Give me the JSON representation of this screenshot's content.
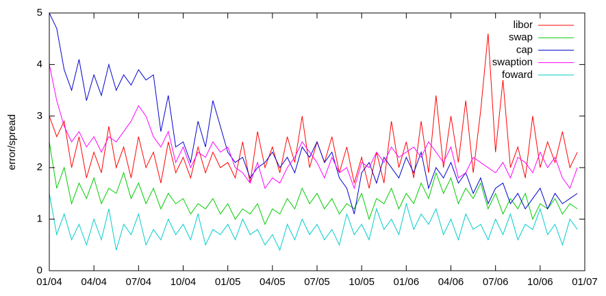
{
  "chart_data": {
    "type": "line",
    "y_label": "error/spread",
    "x": [
      0,
      0.5,
      1,
      1.5,
      2,
      2.5,
      3,
      3.5,
      4,
      4.5,
      5,
      5.5,
      6,
      6.5,
      7,
      7.5,
      8,
      8.5,
      9,
      9.5,
      10,
      10.5,
      11,
      11.5,
      12,
      12.5,
      13,
      13.5,
      14,
      14.5,
      15,
      15.5,
      16,
      16.5,
      17,
      17.5,
      18,
      18.5,
      19,
      19.5,
      20,
      20.5,
      21,
      21.5,
      22,
      22.5,
      23,
      23.5,
      24,
      24.5,
      25,
      25.5,
      26,
      26.5,
      27,
      27.5,
      28,
      28.5,
      29,
      29.5,
      30,
      30.5,
      31,
      31.5,
      32,
      32.5,
      33,
      33.5,
      34,
      34.5,
      35,
      35.5
    ],
    "xlim": [
      0,
      36
    ],
    "xticks": [
      {
        "value": 0,
        "label": "01/04"
      },
      {
        "value": 3,
        "label": "04/04"
      },
      {
        "value": 6,
        "label": "07/04"
      },
      {
        "value": 9,
        "label": "10/04"
      },
      {
        "value": 12,
        "label": "01/05"
      },
      {
        "value": 15,
        "label": "04/05"
      },
      {
        "value": 18,
        "label": "07/05"
      },
      {
        "value": 21,
        "label": "10/05"
      },
      {
        "value": 24,
        "label": "01/06"
      },
      {
        "value": 27,
        "label": "04/06"
      },
      {
        "value": 30,
        "label": "07/06"
      },
      {
        "value": 33,
        "label": "10/06"
      },
      {
        "value": 36,
        "label": "01/07"
      }
    ],
    "ylim": [
      0,
      5
    ],
    "yticks": [
      0,
      1,
      2,
      3,
      4,
      5
    ],
    "legend_position": "top-right",
    "series": [
      {
        "name": "libor",
        "color": "#ff0000",
        "values": [
          3.0,
          2.6,
          2.9,
          2.0,
          2.6,
          1.8,
          2.3,
          1.9,
          2.8,
          2.0,
          2.4,
          1.8,
          2.6,
          2.0,
          2.3,
          1.7,
          2.5,
          1.9,
          2.2,
          1.8,
          2.4,
          1.9,
          2.3,
          2.0,
          2.1,
          1.8,
          2.5,
          1.7,
          2.7,
          2.0,
          2.4,
          1.9,
          2.6,
          2.1,
          3.0,
          2.0,
          2.5,
          2.1,
          2.6,
          1.9,
          2.4,
          1.7,
          2.2,
          1.6,
          2.3,
          1.7,
          2.9,
          2.0,
          2.5,
          1.8,
          2.9,
          1.9,
          3.4,
          2.0,
          3.0,
          2.1,
          3.3,
          1.9,
          3.1,
          4.6,
          2.3,
          3.7,
          2.0,
          2.4,
          1.8,
          3.0,
          2.0,
          2.5,
          2.1,
          2.7,
          2.0,
          2.3
        ]
      },
      {
        "name": "swap",
        "color": "#00cc00",
        "values": [
          2.5,
          1.6,
          2.0,
          1.3,
          1.7,
          1.4,
          1.8,
          1.3,
          1.6,
          1.5,
          1.9,
          1.4,
          1.7,
          1.3,
          1.6,
          1.2,
          1.5,
          1.3,
          1.4,
          1.1,
          1.3,
          1.2,
          1.4,
          1.1,
          1.3,
          1.0,
          1.2,
          1.1,
          1.3,
          0.9,
          1.2,
          1.1,
          1.4,
          1.2,
          1.6,
          1.3,
          1.5,
          1.2,
          1.4,
          1.1,
          1.3,
          1.2,
          1.5,
          1.0,
          1.4,
          1.3,
          1.6,
          1.2,
          1.5,
          1.3,
          1.7,
          1.4,
          1.9,
          1.5,
          1.8,
          1.3,
          1.6,
          1.4,
          1.7,
          1.2,
          1.5,
          1.1,
          1.4,
          1.2,
          1.5,
          1.0,
          1.3,
          1.2,
          1.4,
          1.1,
          1.3,
          1.2
        ]
      },
      {
        "name": "cap",
        "color": "#0000cc",
        "values": [
          5.0,
          4.7,
          3.9,
          3.5,
          4.1,
          3.3,
          3.8,
          3.4,
          4.0,
          3.5,
          3.8,
          3.6,
          3.9,
          3.7,
          3.8,
          2.7,
          3.4,
          2.4,
          2.5,
          2.1,
          2.9,
          2.4,
          3.3,
          2.8,
          2.3,
          2.1,
          2.2,
          1.8,
          2.0,
          2.1,
          2.3,
          2.0,
          2.2,
          1.9,
          2.4,
          2.2,
          2.5,
          2.1,
          2.3,
          1.8,
          1.6,
          1.1,
          1.9,
          2.1,
          1.7,
          2.2,
          2.0,
          1.8,
          2.2,
          1.9,
          2.3,
          1.6,
          2.0,
          1.8,
          2.1,
          1.7,
          1.9,
          1.5,
          1.8,
          1.3,
          1.6,
          1.7,
          1.3,
          1.5,
          1.2,
          1.4,
          1.6,
          1.2,
          1.5,
          1.3,
          1.4,
          1.5
        ]
      },
      {
        "name": "swaption",
        "color": "#ff00ff",
        "values": [
          4.0,
          3.3,
          2.8,
          2.5,
          2.7,
          2.4,
          2.6,
          2.3,
          2.6,
          2.5,
          2.7,
          2.9,
          3.2,
          3.0,
          2.6,
          2.4,
          2.7,
          2.1,
          2.4,
          2.0,
          2.3,
          2.2,
          2.5,
          2.3,
          2.4,
          2.0,
          1.9,
          1.7,
          2.1,
          1.6,
          1.8,
          1.7,
          2.0,
          2.2,
          2.5,
          2.3,
          2.1,
          1.8,
          2.2,
          1.9,
          2.0,
          1.6,
          2.1,
          2.0,
          2.3,
          2.1,
          2.4,
          2.2,
          2.3,
          2.4,
          2.2,
          2.5,
          2.3,
          2.1,
          2.4,
          1.8,
          1.9,
          2.2,
          2.1,
          2.0,
          1.9,
          2.1,
          1.8,
          2.2,
          2.1,
          1.9,
          2.3,
          2.0,
          2.2,
          1.8,
          1.6,
          2.0
        ]
      },
      {
        "name": "foward",
        "color": "#00cccc",
        "values": [
          1.5,
          0.7,
          1.1,
          0.6,
          0.9,
          0.5,
          1.0,
          0.6,
          1.2,
          0.4,
          0.9,
          0.7,
          1.1,
          0.5,
          0.8,
          0.6,
          1.0,
          0.7,
          0.9,
          0.6,
          1.1,
          0.5,
          0.8,
          0.7,
          0.9,
          0.6,
          1.0,
          0.7,
          0.8,
          0.5,
          0.7,
          0.4,
          0.9,
          0.6,
          1.0,
          0.7,
          0.9,
          0.6,
          0.8,
          0.5,
          1.1,
          0.7,
          0.9,
          0.6,
          1.2,
          0.8,
          1.0,
          0.7,
          1.3,
          0.8,
          1.1,
          0.9,
          1.2,
          0.7,
          1.0,
          0.6,
          1.1,
          0.8,
          0.9,
          0.6,
          1.0,
          0.7,
          1.1,
          0.6,
          0.9,
          0.8,
          1.2,
          0.7,
          0.9,
          0.5,
          1.0,
          0.8
        ]
      }
    ]
  }
}
